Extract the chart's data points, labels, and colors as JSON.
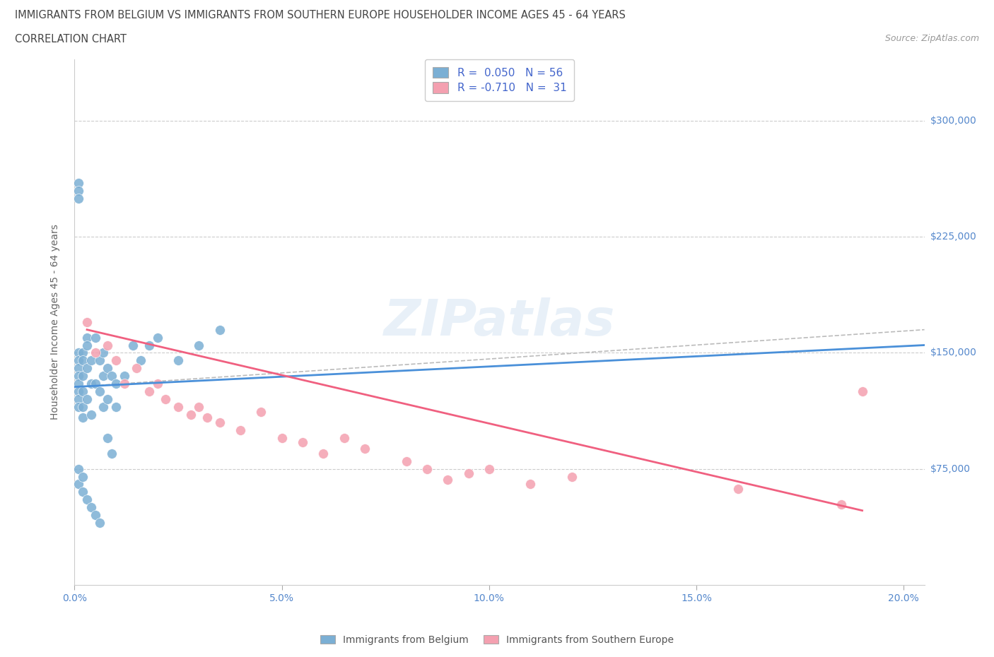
{
  "title_line1": "IMMIGRANTS FROM BELGIUM VS IMMIGRANTS FROM SOUTHERN EUROPE HOUSEHOLDER INCOME AGES 45 - 64 YEARS",
  "title_line2": "CORRELATION CHART",
  "source_text": "Source: ZipAtlas.com",
  "ylabel": "Householder Income Ages 45 - 64 years",
  "xlim": [
    0.0,
    0.205
  ],
  "ylim": [
    0,
    340000
  ],
  "xtick_values": [
    0.0,
    0.05,
    0.1,
    0.15,
    0.2
  ],
  "xtick_labels": [
    "0.0%",
    "5.0%",
    "10.0%",
    "15.0%",
    "20.0%"
  ],
  "ytick_values": [
    75000,
    150000,
    225000,
    300000
  ],
  "ytick_labels": [
    "$75,000",
    "$150,000",
    "$225,000",
    "$300,000"
  ],
  "color_belgium": "#7bafd4",
  "color_southern": "#f4a0b0",
  "color_belgium_line": "#4a90d9",
  "color_southern_line": "#f06080",
  "belgium_x": [
    0.001,
    0.001,
    0.001,
    0.001,
    0.001,
    0.001,
    0.001,
    0.001,
    0.002,
    0.002,
    0.002,
    0.002,
    0.002,
    0.002,
    0.003,
    0.003,
    0.003,
    0.003,
    0.004,
    0.004,
    0.004,
    0.005,
    0.005,
    0.006,
    0.006,
    0.007,
    0.007,
    0.007,
    0.008,
    0.008,
    0.009,
    0.01,
    0.01,
    0.012,
    0.014,
    0.016,
    0.018,
    0.02,
    0.025,
    0.03,
    0.035,
    0.008,
    0.009,
    0.001,
    0.001,
    0.002,
    0.002,
    0.003,
    0.001,
    0.001,
    0.001,
    0.004,
    0.005,
    0.006
  ],
  "belgium_y": [
    150000,
    145000,
    140000,
    135000,
    130000,
    125000,
    120000,
    115000,
    150000,
    145000,
    135000,
    125000,
    115000,
    108000,
    160000,
    155000,
    140000,
    120000,
    145000,
    130000,
    110000,
    160000,
    130000,
    145000,
    125000,
    150000,
    135000,
    115000,
    140000,
    120000,
    135000,
    130000,
    115000,
    135000,
    155000,
    145000,
    155000,
    160000,
    145000,
    155000,
    165000,
    95000,
    85000,
    75000,
    65000,
    70000,
    60000,
    55000,
    260000,
    255000,
    250000,
    50000,
    45000,
    40000
  ],
  "southern_x": [
    0.003,
    0.005,
    0.008,
    0.01,
    0.012,
    0.015,
    0.018,
    0.02,
    0.022,
    0.025,
    0.028,
    0.03,
    0.032,
    0.035,
    0.04,
    0.045,
    0.05,
    0.055,
    0.06,
    0.065,
    0.07,
    0.08,
    0.085,
    0.09,
    0.095,
    0.1,
    0.11,
    0.12,
    0.16,
    0.185,
    0.19
  ],
  "southern_y": [
    170000,
    150000,
    155000,
    145000,
    130000,
    140000,
    125000,
    130000,
    120000,
    115000,
    110000,
    115000,
    108000,
    105000,
    100000,
    112000,
    95000,
    92000,
    85000,
    95000,
    88000,
    80000,
    75000,
    68000,
    72000,
    75000,
    65000,
    70000,
    62000,
    52000,
    125000
  ],
  "bel_trend_x0": 0.0,
  "bel_trend_x1": 0.205,
  "bel_trend_y0": 128000,
  "bel_trend_y1": 155000,
  "sou_trend_x0": 0.003,
  "sou_trend_x1": 0.19,
  "sou_trend_y0": 165000,
  "sou_trend_y1": 48000,
  "dash_trend_x0": 0.0,
  "dash_trend_x1": 0.205,
  "dash_trend_y0": 128000,
  "dash_trend_y1": 165000,
  "bg_color": "#ffffff",
  "text_color_title": "#444444",
  "text_color_axis": "#5588cc",
  "text_color_legend": "#4466cc",
  "watermark_text": "ZIPatlas"
}
